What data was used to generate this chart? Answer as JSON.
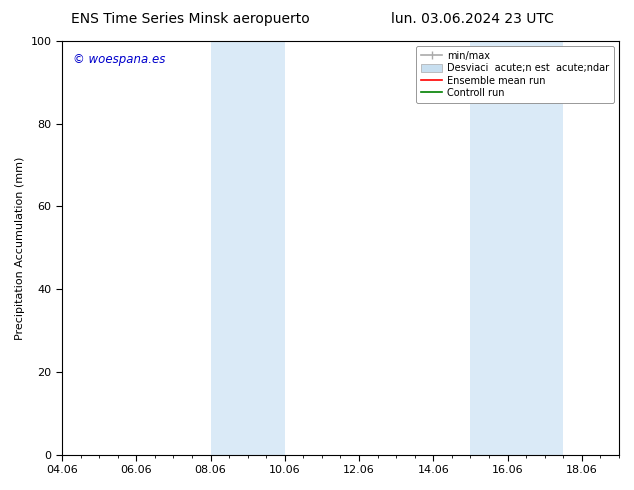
{
  "title_left": "ENS Time Series Minsk aeropuerto",
  "title_right": "lun. 03.06.2024 23 UTC",
  "ylabel": "Precipitation Accumulation (mm)",
  "ylim": [
    0,
    100
  ],
  "yticks": [
    0,
    20,
    40,
    60,
    80,
    100
  ],
  "xtick_labels": [
    "04.06",
    "06.06",
    "08.06",
    "10.06",
    "12.06",
    "14.06",
    "16.06",
    "18.06"
  ],
  "xtick_positions_days": [
    0,
    2,
    4,
    6,
    8,
    10,
    12,
    14
  ],
  "xlim": [
    0,
    15
  ],
  "shaded_regions": [
    {
      "xstart_days": 4,
      "xend_days": 6,
      "color": "#daeaf7"
    },
    {
      "xstart_days": 11,
      "xend_days": 13.5,
      "color": "#daeaf7"
    }
  ],
  "watermark_text": "© woespana.es",
  "watermark_color": "#0000cc",
  "legend_line1_label": "min/max",
  "legend_line1_color": "#aaaaaa",
  "legend_fill_label": "Desviaci  acute;n est  acute;ndar",
  "legend_fill_color": "#c8dff0",
  "legend_fill_edge": "#aaaaaa",
  "legend_line2_label": "Ensemble mean run",
  "legend_line2_color": "#ff0000",
  "legend_line3_label": "Controll run",
  "legend_line3_color": "#008000",
  "bg_color": "#ffffff",
  "plot_bg_color": "#ffffff",
  "title_fontsize": 10,
  "tick_fontsize": 8,
  "ylabel_fontsize": 8,
  "legend_fontsize": 7
}
